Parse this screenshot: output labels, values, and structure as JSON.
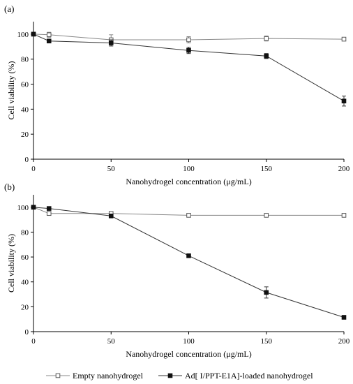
{
  "legend": {
    "placement": "bottom",
    "entries": [
      {
        "label": "Empty nanohydrogel",
        "marker": "open-square"
      },
      {
        "label": "Ad[ I/PPT-E1A]-loaded nanohydrogel",
        "marker": "filled-square"
      }
    ]
  },
  "colors": {
    "empty_series": "#888888",
    "loaded_series": "#333333",
    "axis": "#000000"
  },
  "chart_data": [
    {
      "panel_label": "(a)",
      "type": "line",
      "xlabel": "Nanohydrogel concentration (μg/mL)",
      "ylabel": "Cell viability (%)",
      "xlim": [
        0,
        200
      ],
      "ylim": [
        0,
        110
      ],
      "x_ticks": [
        0,
        50,
        100,
        150,
        200
      ],
      "y_ticks": [
        0,
        20,
        40,
        60,
        80,
        100
      ],
      "grid": false,
      "x": [
        0,
        10,
        50,
        100,
        150,
        200
      ],
      "series": [
        {
          "name": "Empty nanohydrogel",
          "marker": "open-square",
          "values": [
            100,
            99.5,
            95.5,
            95.5,
            96.5,
            96
          ],
          "errors": [
            0,
            2,
            4,
            2.5,
            2,
            0.8
          ]
        },
        {
          "name": "Ad[ I/PPT-E1A]-loaded nanohydrogel",
          "marker": "filled-square",
          "values": [
            100,
            94.5,
            93,
            87,
            82.5,
            46.5
          ],
          "errors": [
            0,
            1,
            2.5,
            2.5,
            2,
            4
          ]
        }
      ]
    },
    {
      "panel_label": "(b)",
      "type": "line",
      "xlabel": "Nanohydrogel concentration (μg/mL)",
      "ylabel": "Cell viability (%)",
      "xlim": [
        0,
        200
      ],
      "ylim": [
        0,
        110
      ],
      "x_ticks": [
        0,
        50,
        100,
        150,
        200
      ],
      "y_ticks": [
        0,
        20,
        40,
        60,
        80,
        100
      ],
      "grid": false,
      "x": [
        0,
        10,
        50,
        100,
        150,
        200
      ],
      "series": [
        {
          "name": "Empty nanohydrogel",
          "marker": "open-square",
          "values": [
            100,
            95,
            95,
            93.5,
            93.5,
            93.5
          ],
          "errors": [
            0,
            0.8,
            0.8,
            1.2,
            0.8,
            1.2
          ]
        },
        {
          "name": "Ad[ I/PPT-E1A]-loaded nanohydrogel",
          "marker": "filled-square",
          "values": [
            100,
            99,
            93,
            61,
            31.5,
            11.5
          ],
          "errors": [
            0,
            0.6,
            0.8,
            1.2,
            4.5,
            1.2
          ]
        }
      ]
    }
  ]
}
